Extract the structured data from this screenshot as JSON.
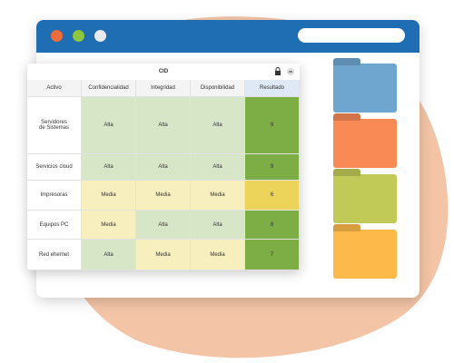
{
  "window": {
    "title": "CID"
  },
  "table": {
    "header": [
      "Activo",
      "Confidencialidad",
      "Integridad",
      "Disponibilidad",
      "Resultado"
    ],
    "rows": [
      [
        "Servidores\nde Sistemas",
        "Alta",
        "Alta",
        "Alta",
        9
      ],
      [
        "Servicios cloud",
        "Alta",
        "Alta",
        "Alta",
        9
      ],
      [
        "Impresoras",
        "Media",
        "Media",
        "Media",
        6
      ],
      [
        "Equipos PC",
        "Media",
        "Alta",
        "Alta",
        8
      ],
      [
        "Red ehernet",
        "Alta",
        "Media",
        "Media",
        7
      ]
    ]
  }
}
